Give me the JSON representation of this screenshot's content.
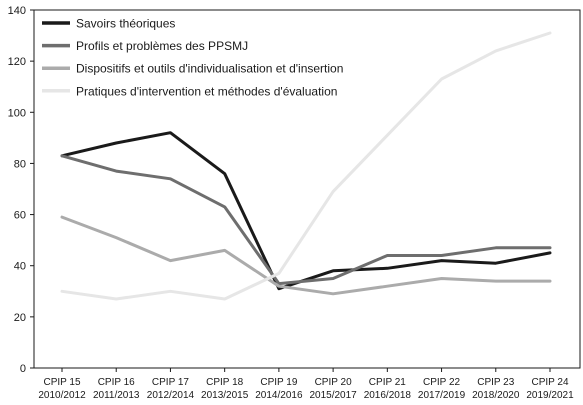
{
  "chart_data": {
    "type": "line",
    "categories": [
      [
        "CPIP 15",
        "2010/2012"
      ],
      [
        "CPIP 16",
        "2011/2013"
      ],
      [
        "CPIP 17",
        "2012/2014"
      ],
      [
        "CPIP 18",
        "2013/2015"
      ],
      [
        "CPIP 19",
        "2014/2016"
      ],
      [
        "CPIP 20",
        "2015/2017"
      ],
      [
        "CPIP 21",
        "2016/2018"
      ],
      [
        "CPIP 22",
        "2017/2019"
      ],
      [
        "CPIP 23",
        "2018/2020"
      ],
      [
        "CPIP 24",
        "2019/2021"
      ]
    ],
    "series": [
      {
        "name": "Savoirs théoriques",
        "color": "#1a1a1a",
        "values": [
          83,
          88,
          92,
          76,
          31,
          38,
          39,
          42,
          41,
          45
        ]
      },
      {
        "name": "Profils et problèmes des PPSMJ",
        "color": "#6e6e6e",
        "values": [
          83,
          77,
          74,
          63,
          33,
          35,
          44,
          44,
          47,
          47
        ]
      },
      {
        "name": "Dispositifs et outils d'individualisation et d'insertion",
        "color": "#ababab",
        "values": [
          59,
          51,
          42,
          46,
          32,
          29,
          32,
          35,
          34,
          34
        ]
      },
      {
        "name": "Pratiques d'intervention et méthodes d'évaluation",
        "color": "#e6e6e6",
        "values": [
          30,
          27,
          30,
          27,
          37,
          69,
          91,
          113,
          124,
          131
        ]
      }
    ],
    "yticks": [
      "0",
      "20",
      "40",
      "60",
      "80",
      "100",
      "120",
      "140"
    ],
    "ylim": [
      0,
      140
    ],
    "grid": false,
    "legend_position": "top-left"
  }
}
